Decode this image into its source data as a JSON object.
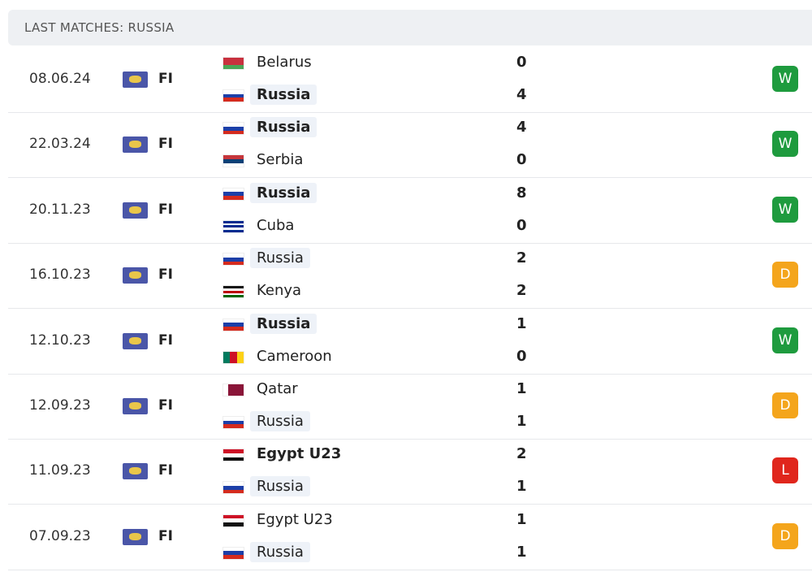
{
  "header": {
    "title": "LAST MATCHES: RUSSIA"
  },
  "matches": [
    {
      "date": "08.06.24",
      "competition": "FI",
      "home": {
        "team": "Belarus",
        "score": 0
      },
      "away": {
        "team": "Russia",
        "score": 4
      },
      "result": "W",
      "color": "#1e9b3e"
    },
    {
      "date": "22.03.24",
      "competition": "FI",
      "home": {
        "team": "Russia",
        "score": 4
      },
      "away": {
        "team": "Serbia",
        "score": 0
      },
      "result": "W",
      "color": "#1e9b3e"
    },
    {
      "date": "20.11.23",
      "competition": "FI",
      "home": {
        "team": "Russia",
        "score": 8
      },
      "away": {
        "team": "Cuba",
        "score": 0
      },
      "result": "W",
      "color": "#1e9b3e"
    },
    {
      "date": "16.10.23",
      "competition": "FI",
      "home": {
        "team": "Russia",
        "score": 2
      },
      "away": {
        "team": "Kenya",
        "score": 2
      },
      "result": "D",
      "color": "#f4a51c"
    },
    {
      "date": "12.10.23",
      "competition": "FI",
      "home": {
        "team": "Russia",
        "score": 1
      },
      "away": {
        "team": "Cameroon",
        "score": 0
      },
      "result": "W",
      "color": "#1e9b3e"
    },
    {
      "date": "12.09.23",
      "competition": "FI",
      "home": {
        "team": "Qatar",
        "score": 1
      },
      "away": {
        "team": "Russia",
        "score": 1
      },
      "result": "D",
      "color": "#f4a51c"
    },
    {
      "date": "11.09.23",
      "competition": "FI",
      "home": {
        "team": "Egypt U23",
        "score": 2
      },
      "away": {
        "team": "Russia",
        "score": 1
      },
      "result": "L",
      "color": "#e0261c"
    },
    {
      "date": "07.09.23",
      "competition": "FI",
      "home": {
        "team": "Egypt U23",
        "score": 1
      },
      "away": {
        "team": "Russia",
        "score": 1
      },
      "result": "D",
      "color": "#f4a51c"
    }
  ]
}
